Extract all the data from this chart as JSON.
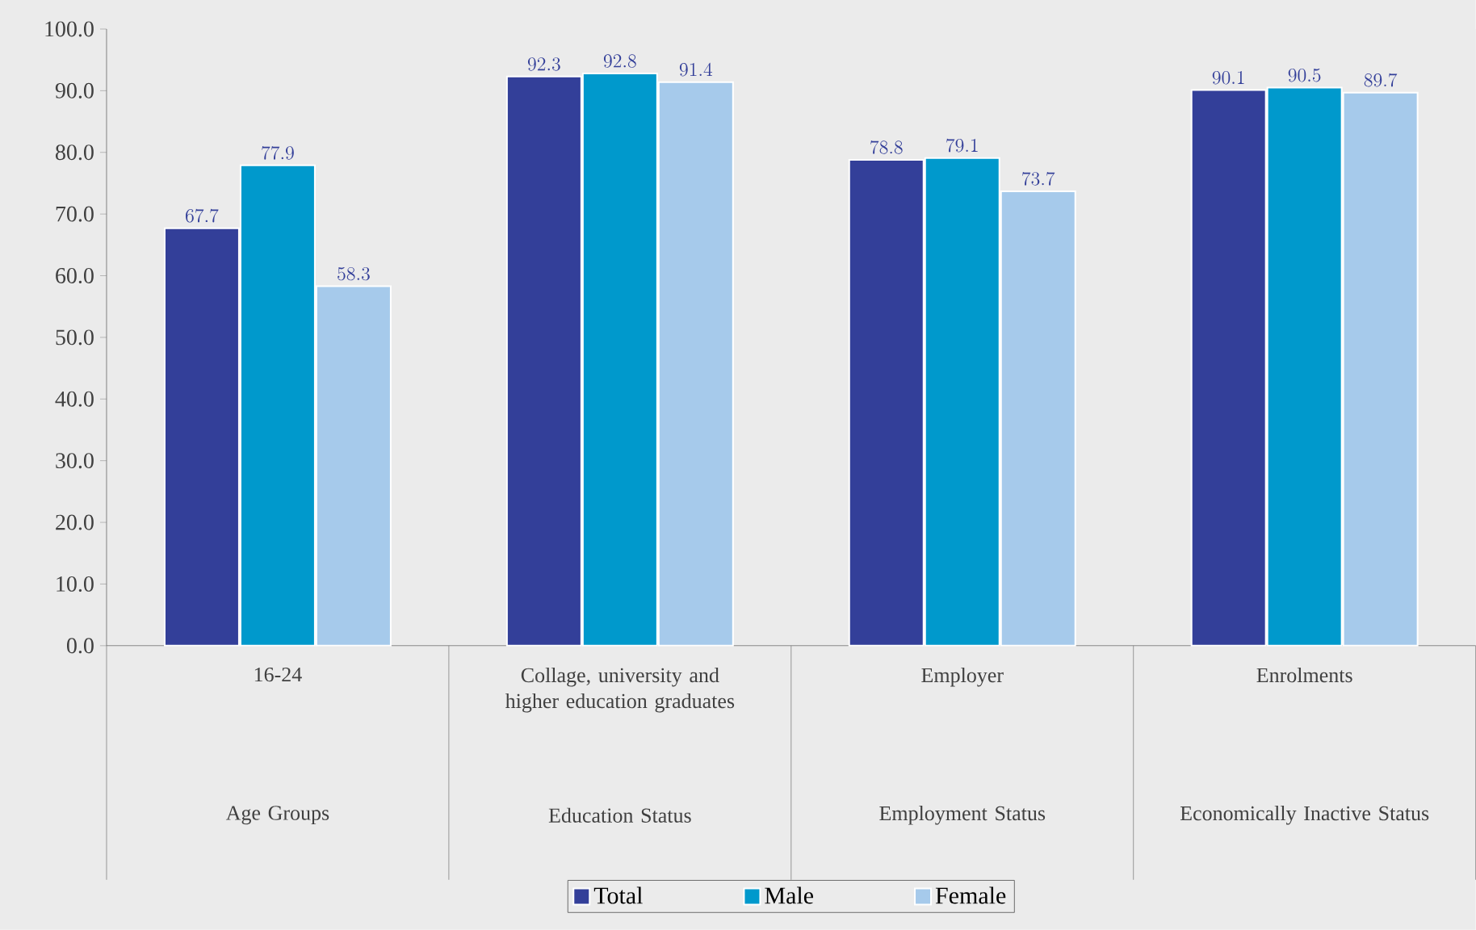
{
  "chart_data": {
    "type": "bar",
    "categories": [
      "16-24",
      "Collage, university and higher education graduates",
      "Employer",
      "Enrolments"
    ],
    "annotations": [
      "Age Groups",
      "Education Status",
      "Employment Status",
      "Economically Inactive Status"
    ],
    "series": [
      {
        "name": "Total",
        "color": "#333f99",
        "values": [
          67.7,
          92.3,
          78.8,
          90.1
        ]
      },
      {
        "name": "Male",
        "color": "#0099cc",
        "values": [
          77.9,
          92.8,
          79.1,
          90.5
        ]
      },
      {
        "name": "Female",
        "color": "#a6caeb",
        "values": [
          58.3,
          91.4,
          73.7,
          89.7
        ]
      }
    ],
    "ylim": [
      0,
      100
    ],
    "yticks": [
      {
        "value": 0,
        "label": "0.0"
      },
      {
        "value": 10,
        "label": "10.0"
      },
      {
        "value": 20,
        "label": "20.0"
      },
      {
        "value": 30,
        "label": "30.0"
      },
      {
        "value": 40,
        "label": "40.0"
      },
      {
        "value": 50,
        "label": "50.0"
      },
      {
        "value": 60,
        "label": "60.0"
      },
      {
        "value": 70,
        "label": "70.0"
      },
      {
        "value": 80,
        "label": "80.0"
      },
      {
        "value": 90,
        "label": "90.0"
      },
      {
        "value": 100,
        "label": "100.0"
      }
    ],
    "data_labels": true,
    "legend": "bottom",
    "grid": false
  }
}
